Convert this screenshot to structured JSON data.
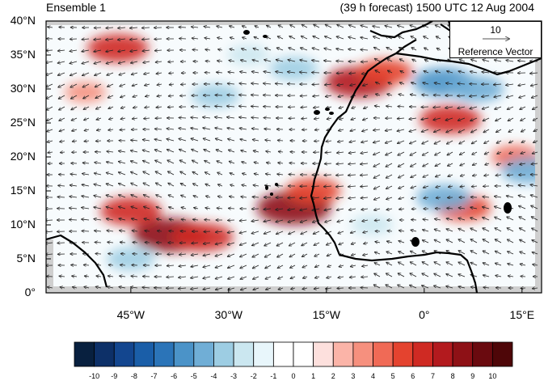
{
  "header": {
    "ensemble_label": "Ensemble 1",
    "forecast_label": "(39 h forecast) 1500 UTC 12 Aug 2004"
  },
  "map": {
    "lon_range": [
      -58,
      18
    ],
    "lat_range": [
      0,
      40
    ],
    "lat_ticks": [
      {
        "value": 40,
        "label": "40°N"
      },
      {
        "value": 35,
        "label": "35°N"
      },
      {
        "value": 30,
        "label": "30°N"
      },
      {
        "value": 25,
        "label": "25°N"
      },
      {
        "value": 20,
        "label": "20°N"
      },
      {
        "value": 15,
        "label": "15°N"
      },
      {
        "value": 10,
        "label": "10°N"
      },
      {
        "value": 5,
        "label": "5°N"
      },
      {
        "value": 0,
        "label": "0°"
      }
    ],
    "lon_ticks": [
      {
        "value": -45,
        "label": "45°W"
      },
      {
        "value": -30,
        "label": "30°W"
      },
      {
        "value": -15,
        "label": "15°W"
      },
      {
        "value": 0,
        "label": "0°"
      },
      {
        "value": 15,
        "label": "15°E"
      }
    ],
    "reference_vector": {
      "value": "10",
      "label": "Reference Vector"
    },
    "anomaly_features": [
      {
        "lon": -39,
        "lat": 8.5,
        "value": 8
      },
      {
        "lon": -34,
        "lat": 8.2,
        "value": 6
      },
      {
        "lon": -45,
        "lat": 12,
        "value": 6
      },
      {
        "lon": -47,
        "lat": 36,
        "value": 6
      },
      {
        "lon": -20,
        "lat": 12.5,
        "value": 8
      },
      {
        "lon": -17,
        "lat": 15,
        "value": 5
      },
      {
        "lon": -10,
        "lat": 31,
        "value": 7
      },
      {
        "lon": -6,
        "lat": 32.5,
        "value": 5
      },
      {
        "lon": 4,
        "lat": 25.5,
        "value": 6
      },
      {
        "lon": 6,
        "lat": 12.5,
        "value": 5
      },
      {
        "lon": 14,
        "lat": 20,
        "value": 4
      },
      {
        "lon": -52,
        "lat": 29.5,
        "value": 3
      },
      {
        "lon": 3,
        "lat": 31,
        "value": -6
      },
      {
        "lon": 8,
        "lat": 30,
        "value": -5
      },
      {
        "lon": -32,
        "lat": 29,
        "value": -4
      },
      {
        "lon": -20,
        "lat": 33,
        "value": -4
      },
      {
        "lon": -45,
        "lat": 5,
        "value": -4
      },
      {
        "lon": 3,
        "lat": 14,
        "value": -5
      },
      {
        "lon": 16,
        "lat": 18,
        "value": -5
      },
      {
        "lon": -27,
        "lat": 35,
        "value": -3
      },
      {
        "lon": -8,
        "lat": 10,
        "value": -3
      }
    ]
  },
  "colorbar": {
    "labels": [
      "-10",
      "-9",
      "-8",
      "-7",
      "-6",
      "-5",
      "-4",
      "-3",
      "-2",
      "-1",
      "0",
      "1",
      "2",
      "3",
      "4",
      "5",
      "6",
      "7",
      "8",
      "9",
      "10"
    ],
    "colors": [
      "#08203f",
      "#0d3068",
      "#13468f",
      "#1a5ea8",
      "#2b74b8",
      "#4b93c8",
      "#70aed6",
      "#9dcde3",
      "#cbe7f0",
      "#e8f6fb",
      "#ffffff",
      "#ffffff",
      "#fde0dd",
      "#fbb4a8",
      "#f6907e",
      "#f06a56",
      "#e4432f",
      "#cf2a23",
      "#b31a1e",
      "#8e1116",
      "#6a0a0f",
      "#4e0608"
    ]
  }
}
